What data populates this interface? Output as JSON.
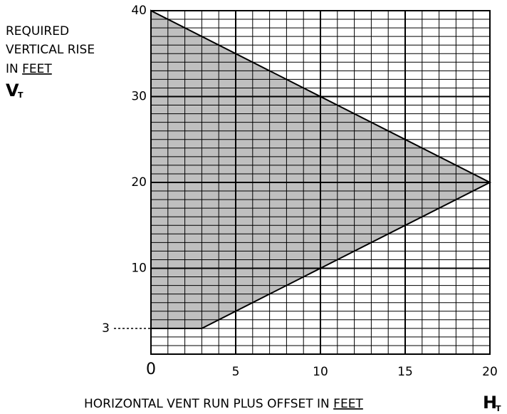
{
  "chart_data": {
    "type": "area",
    "ylabel": {
      "lines": [
        "REQUIRED",
        "VERTICAL RISE"
      ],
      "prefix": "IN ",
      "underlined": "FEET",
      "symbol": "V",
      "subscript": "T"
    },
    "xlabel": {
      "text": "HORIZONTAL VENT RUN PLUS OFFSET IN ",
      "underlined": "FEET",
      "symbol": "H",
      "subscript": "T"
    },
    "x": [
      0,
      20,
      3,
      0
    ],
    "values": [
      40,
      20,
      3,
      3
    ],
    "color": "#bfbfbf",
    "xlim": [
      0,
      20
    ],
    "ylim": [
      0,
      40
    ],
    "xticks": [
      0,
      5,
      10,
      15,
      20
    ],
    "yticks": [
      10,
      20,
      30,
      40
    ],
    "y_marker": 3,
    "grid": true
  }
}
